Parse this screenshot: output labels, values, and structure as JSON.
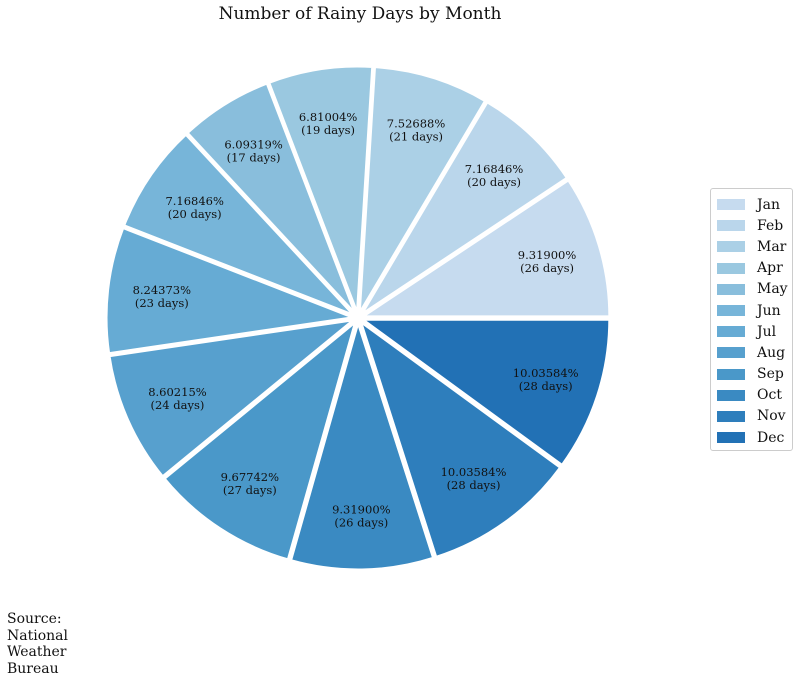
{
  "chart_data": {
    "type": "pie",
    "title": "Number of Rainy Days by Month",
    "categories": [
      "Jan",
      "Feb",
      "Mar",
      "Apr",
      "May",
      "Jun",
      "Jul",
      "Aug",
      "Sep",
      "Oct",
      "Nov",
      "Dec"
    ],
    "values": [
      26,
      20,
      21,
      19,
      17,
      20,
      23,
      24,
      27,
      26,
      28,
      28
    ],
    "percent_labels": [
      "9.31900%",
      "7.16846%",
      "7.52688%",
      "6.81004%",
      "6.09319%",
      "7.16846%",
      "8.24373%",
      "8.60215%",
      "9.67742%",
      "9.31900%",
      "10.03584%",
      "10.03584%"
    ],
    "value_labels": [
      "(26 days)",
      "(20 days)",
      "(21 days)",
      "(19 days)",
      "(17 days)",
      "(20 days)",
      "(23 days)",
      "(24 days)",
      "(27 days)",
      "(26 days)",
      "(28 days)",
      "(28 days)"
    ],
    "colors": [
      "#c6dbef",
      "#bad6eb",
      "#abd0e6",
      "#9ac8e0",
      "#89bedc",
      "#77b5d9",
      "#66abd4",
      "#57a0ce",
      "#4a98c9",
      "#3a8ac2",
      "#2e7ebc",
      "#2271b5"
    ],
    "start_angle_deg": 0,
    "direction": "counterclockwise",
    "exploded": true,
    "legend": {
      "placement": "right",
      "entries": [
        "Jan",
        "Feb",
        "Mar",
        "Apr",
        "May",
        "Jun",
        "Jul",
        "Aug",
        "Sep",
        "Oct",
        "Nov",
        "Dec"
      ]
    },
    "source_note": "Source:\nNational\nWeather\nBureau"
  }
}
